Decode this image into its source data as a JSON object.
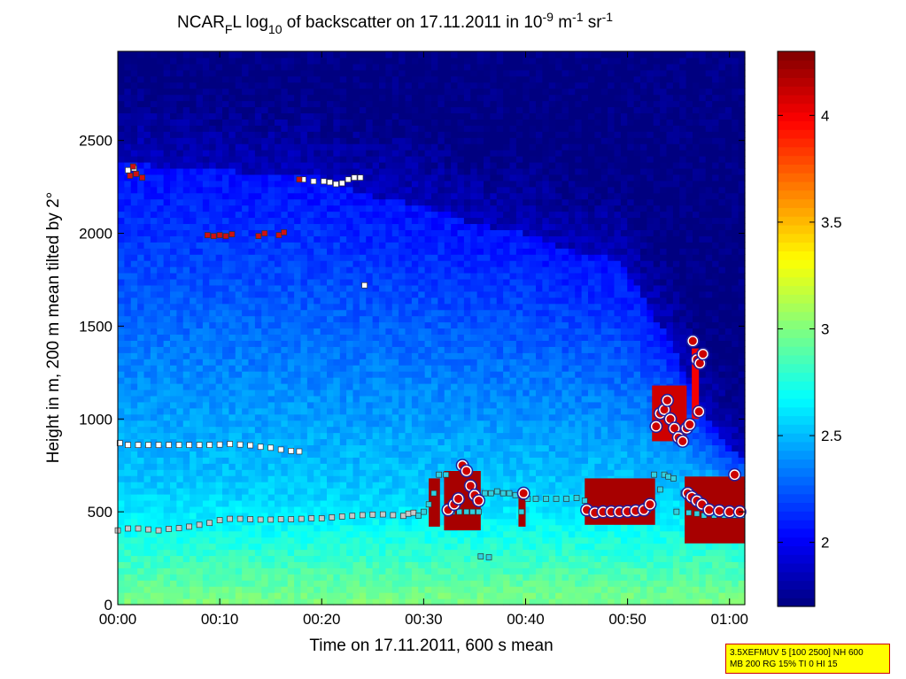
{
  "chart_data": {
    "type": "heatmap",
    "title_parts": {
      "prefix": "NCAR",
      "sub1": "F",
      "mid1": "L log",
      "sub2": "10",
      "mid2": " of backscatter on 17.11.2011 in 10",
      "sup1": "-9",
      "mid3": " m",
      "sup2": "-1",
      "mid4": " sr",
      "sup3": "-1"
    },
    "xlabel": "Time on 17.11.2011, 600 s mean",
    "ylabel": "Height in m, 200 m mean tilted by 2°",
    "xlim_minutes": [
      0,
      61.5
    ],
    "ylim": [
      0,
      2980
    ],
    "x_ticks": [
      {
        "value": 0,
        "label": "00:00"
      },
      {
        "value": 10,
        "label": "00:10"
      },
      {
        "value": 20,
        "label": "00:20"
      },
      {
        "value": 30,
        "label": "00:30"
      },
      {
        "value": 40,
        "label": "00:40"
      },
      {
        "value": 50,
        "label": "00:50"
      },
      {
        "value": 60,
        "label": "01:00"
      }
    ],
    "y_ticks": [
      {
        "value": 0,
        "label": "0"
      },
      {
        "value": 500,
        "label": "500"
      },
      {
        "value": 1000,
        "label": "1000"
      },
      {
        "value": 1500,
        "label": "1500"
      },
      {
        "value": 2000,
        "label": "2000"
      },
      {
        "value": 2500,
        "label": "2500"
      }
    ],
    "colorbar": {
      "range": [
        1.7,
        4.3
      ],
      "ticks": [
        {
          "value": 2,
          "label": "2"
        },
        {
          "value": 2.5,
          "label": "2.5"
        },
        {
          "value": 3,
          "label": "3"
        },
        {
          "value": 3.5,
          "label": "3.5"
        },
        {
          "value": 4,
          "label": "4"
        }
      ]
    },
    "field": {
      "top_heights": [
        [
          0,
          2380
        ],
        [
          5,
          2360
        ],
        [
          10,
          2340
        ],
        [
          15,
          2320
        ],
        [
          20,
          2300
        ],
        [
          25,
          2200
        ],
        [
          30,
          2150
        ],
        [
          35,
          2050
        ],
        [
          40,
          2000
        ],
        [
          45,
          1900
        ],
        [
          48,
          1880
        ],
        [
          50,
          1800
        ],
        [
          52,
          1600
        ],
        [
          54,
          1450
        ],
        [
          56,
          1200
        ],
        [
          58,
          1000
        ],
        [
          60,
          850
        ],
        [
          61.5,
          800
        ]
      ],
      "cloud_patches": [
        {
          "t0": 30.5,
          "t1": 31.6,
          "z0": 420,
          "z1": 680,
          "value": 4.2
        },
        {
          "t0": 32.0,
          "t1": 35.6,
          "z0": 400,
          "z1": 720,
          "value": 4.2
        },
        {
          "t0": 39.3,
          "t1": 40.0,
          "z0": 420,
          "z1": 600,
          "value": 4.2
        },
        {
          "t0": 45.8,
          "t1": 52.7,
          "z0": 430,
          "z1": 680,
          "value": 4.2
        },
        {
          "t0": 52.4,
          "t1": 55.8,
          "z0": 880,
          "z1": 1180,
          "value": 4.1
        },
        {
          "t0": 55.6,
          "t1": 61.5,
          "z0": 330,
          "z1": 690,
          "value": 4.2
        },
        {
          "t0": 56.3,
          "t1": 57.0,
          "z0": 1000,
          "z1": 1380,
          "value": 4.0
        }
      ]
    },
    "series": [
      {
        "marker": "square-white",
        "points": [
          [
            0.2,
            870
          ],
          [
            1,
            860
          ],
          [
            2,
            860
          ],
          [
            3,
            860
          ],
          [
            4,
            860
          ],
          [
            5,
            860
          ],
          [
            6,
            860
          ],
          [
            7,
            860
          ],
          [
            8,
            860
          ],
          [
            9,
            860
          ],
          [
            10,
            862
          ],
          [
            11,
            865
          ],
          [
            12,
            862
          ],
          [
            13,
            858
          ],
          [
            14,
            850
          ],
          [
            15,
            845
          ],
          [
            16,
            835
          ],
          [
            17,
            828
          ],
          [
            17.8,
            825
          ],
          [
            1.0,
            2340
          ],
          [
            1.6,
            2350
          ],
          [
            18.2,
            2290
          ],
          [
            19.2,
            2280
          ],
          [
            20.2,
            2280
          ],
          [
            20.8,
            2275
          ],
          [
            21.4,
            2265
          ],
          [
            22.0,
            2270
          ],
          [
            22.6,
            2290
          ],
          [
            23.2,
            2300
          ],
          [
            23.8,
            2300
          ],
          [
            24.2,
            1720
          ]
        ]
      },
      {
        "marker": "square-red",
        "points": [
          [
            1.2,
            2310
          ],
          [
            1.8,
            2320
          ],
          [
            2.4,
            2300
          ],
          [
            1.5,
            2360
          ],
          [
            8.8,
            1990
          ],
          [
            9.4,
            1985
          ],
          [
            10.0,
            1990
          ],
          [
            10.6,
            1985
          ],
          [
            11.2,
            1995
          ],
          [
            13.8,
            1985
          ],
          [
            14.4,
            2000
          ],
          [
            15.8,
            1990
          ],
          [
            16.3,
            2005
          ],
          [
            17.8,
            2290
          ]
        ]
      },
      {
        "marker": "square-grey",
        "points": [
          [
            0,
            400
          ],
          [
            1,
            410
          ],
          [
            2,
            410
          ],
          [
            3,
            405
          ],
          [
            4,
            400
          ],
          [
            5,
            408
          ],
          [
            6,
            412
          ],
          [
            7,
            420
          ],
          [
            8,
            430
          ],
          [
            9,
            440
          ],
          [
            10,
            455
          ],
          [
            11,
            462
          ],
          [
            12,
            462
          ],
          [
            13,
            460
          ],
          [
            14,
            458
          ],
          [
            15,
            458
          ],
          [
            16,
            460
          ],
          [
            17,
            460
          ],
          [
            18,
            462
          ],
          [
            19,
            465
          ],
          [
            20,
            465
          ],
          [
            21,
            470
          ],
          [
            22,
            475
          ],
          [
            23,
            478
          ],
          [
            24,
            482
          ],
          [
            25,
            485
          ],
          [
            26,
            486
          ],
          [
            27,
            482
          ],
          [
            28,
            478
          ],
          [
            28.5,
            490
          ],
          [
            29,
            495
          ]
        ]
      },
      {
        "marker": "square-cyan",
        "points": [
          [
            29.5,
            480
          ],
          [
            30,
            500
          ],
          [
            30.5,
            540
          ],
          [
            31,
            600
          ],
          [
            31.5,
            700
          ],
          [
            32.2,
            700
          ],
          [
            32.8,
            500
          ],
          [
            33.5,
            500
          ],
          [
            34.2,
            500
          ],
          [
            34.8,
            500
          ],
          [
            35.4,
            500
          ],
          [
            36,
            600
          ],
          [
            36.6,
            600
          ],
          [
            37.2,
            610
          ],
          [
            37.8,
            600
          ],
          [
            38.4,
            600
          ],
          [
            39,
            590
          ],
          [
            39.6,
            500
          ],
          [
            40.2,
            570
          ],
          [
            41,
            570
          ],
          [
            42,
            570
          ],
          [
            43,
            570
          ],
          [
            44,
            570
          ],
          [
            45,
            575
          ],
          [
            45.8,
            560
          ],
          [
            46.2,
            510
          ],
          [
            47,
            505
          ],
          [
            48,
            505
          ],
          [
            49,
            505
          ],
          [
            50,
            505
          ],
          [
            51,
            505
          ],
          [
            52,
            510
          ],
          [
            52.6,
            700
          ],
          [
            53.2,
            620
          ],
          [
            53.6,
            700
          ],
          [
            54,
            690
          ],
          [
            54.5,
            680
          ],
          [
            54.8,
            500
          ],
          [
            55.5,
            600
          ],
          [
            56,
            495
          ],
          [
            56.8,
            490
          ],
          [
            57.5,
            480
          ],
          [
            58.5,
            480
          ],
          [
            59.5,
            480
          ],
          [
            60.5,
            480
          ],
          [
            61.2,
            480
          ],
          [
            35.6,
            260
          ],
          [
            36.4,
            255
          ]
        ]
      },
      {
        "marker": "circle-red",
        "points": [
          [
            32.4,
            510
          ],
          [
            33,
            540
          ],
          [
            33.4,
            570
          ],
          [
            33.8,
            750
          ],
          [
            34.2,
            720
          ],
          [
            34.6,
            640
          ],
          [
            35,
            590
          ],
          [
            35.4,
            560
          ],
          [
            39.8,
            600
          ],
          [
            46,
            510
          ],
          [
            46.8,
            495
          ],
          [
            47.6,
            500
          ],
          [
            48.4,
            500
          ],
          [
            49.2,
            500
          ],
          [
            50,
            502
          ],
          [
            50.8,
            505
          ],
          [
            51.6,
            510
          ],
          [
            52.2,
            540
          ],
          [
            52.8,
            960
          ],
          [
            53.2,
            1030
          ],
          [
            53.6,
            1050
          ],
          [
            53.9,
            1100
          ],
          [
            54.2,
            1000
          ],
          [
            54.6,
            950
          ],
          [
            55,
            900
          ],
          [
            55.4,
            880
          ],
          [
            55.8,
            950
          ],
          [
            56.1,
            970
          ],
          [
            56.4,
            1420
          ],
          [
            56.8,
            1320
          ],
          [
            57.1,
            1300
          ],
          [
            57.4,
            1350
          ],
          [
            57.0,
            1040
          ],
          [
            55.9,
            600
          ],
          [
            56.3,
            580
          ],
          [
            56.8,
            560
          ],
          [
            57.3,
            540
          ],
          [
            58,
            510
          ],
          [
            59,
            505
          ],
          [
            60,
            500
          ],
          [
            61,
            500
          ],
          [
            60.5,
            700
          ]
        ]
      }
    ],
    "info_box_lines": [
      "3.5XEFMUV 5 [100 2500] NH 600",
      "MB 200 RG 15% TI 0 HI 15"
    ]
  }
}
